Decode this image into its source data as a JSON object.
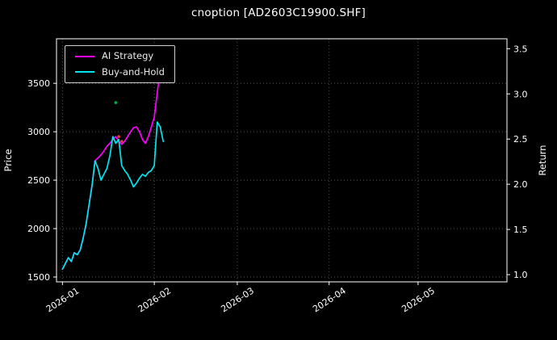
{
  "chart_data": {
    "type": "line",
    "title": "cnoption [AD2603C19900.SHF]",
    "xlabel": "",
    "ylabel_left": "Price",
    "ylabel_right": "Return",
    "background": "#000000",
    "grid": "dotted",
    "legend_position": "upper-left",
    "x_ticks": [
      "2026-01",
      "2026-02",
      "2026-03",
      "2026-04",
      "2026-05"
    ],
    "x_tick_dates": [
      "2026-01-01",
      "2026-02-01",
      "2026-03-01",
      "2026-04-01",
      "2026-05-01"
    ],
    "x_domain": [
      "2025-12-30",
      "2026-05-31"
    ],
    "y_left": {
      "ticks": [
        1500,
        2000,
        2500,
        3000,
        3500
      ],
      "domain": [
        1450,
        3960
      ]
    },
    "y_right": {
      "ticks": [
        1.0,
        1.5,
        2.0,
        2.5,
        3.0,
        3.5
      ],
      "domain": [
        0.92,
        3.61
      ]
    },
    "series": [
      {
        "name": "AI Strategy",
        "color": "#ff00ff",
        "axis": "left",
        "dates": [
          "2026-01-01",
          "2026-01-02",
          "2026-01-03",
          "2026-01-04",
          "2026-01-05",
          "2026-01-06",
          "2026-01-07",
          "2026-01-08",
          "2026-01-09",
          "2026-01-10",
          "2026-01-11",
          "2026-01-12",
          "2026-01-13",
          "2026-01-14",
          "2026-01-15",
          "2026-01-16",
          "2026-01-17",
          "2026-01-18",
          "2026-01-19",
          "2026-01-20",
          "2026-01-21",
          "2026-01-22",
          "2026-01-23",
          "2026-01-24",
          "2026-01-25",
          "2026-01-26",
          "2026-01-27",
          "2026-01-28",
          "2026-01-29",
          "2026-01-30",
          "2026-01-31",
          "2026-02-01",
          "2026-02-02",
          "2026-02-03",
          "2026-02-04"
        ],
        "values": [
          1580,
          1640,
          1700,
          1660,
          1750,
          1730,
          1780,
          1900,
          2050,
          2250,
          2450,
          2700,
          2730,
          2760,
          2800,
          2850,
          2880,
          2920,
          2950,
          2900,
          2870,
          2900,
          2950,
          3000,
          3040,
          3050,
          3000,
          2920,
          2880,
          2950,
          3050,
          3150,
          3400,
          3650,
          3800
        ]
      },
      {
        "name": "Buy-and-Hold",
        "color": "#00e5ee",
        "axis": "left",
        "dates": [
          "2026-01-01",
          "2026-01-02",
          "2026-01-03",
          "2026-01-04",
          "2026-01-05",
          "2026-01-06",
          "2026-01-07",
          "2026-01-08",
          "2026-01-09",
          "2026-01-10",
          "2026-01-11",
          "2026-01-12",
          "2026-01-13",
          "2026-01-14",
          "2026-01-15",
          "2026-01-16",
          "2026-01-17",
          "2026-01-18",
          "2026-01-19",
          "2026-01-20",
          "2026-01-21",
          "2026-01-22",
          "2026-01-23",
          "2026-01-24",
          "2026-01-25",
          "2026-01-26",
          "2026-01-27",
          "2026-01-28",
          "2026-01-29",
          "2026-01-30",
          "2026-01-31",
          "2026-02-01",
          "2026-02-02",
          "2026-02-03",
          "2026-02-04"
        ],
        "values": [
          1580,
          1640,
          1700,
          1660,
          1750,
          1730,
          1780,
          1900,
          2050,
          2250,
          2450,
          2700,
          2620,
          2500,
          2560,
          2620,
          2750,
          2950,
          2880,
          2920,
          2650,
          2600,
          2560,
          2500,
          2430,
          2470,
          2520,
          2560,
          2540,
          2580,
          2600,
          2650,
          3100,
          3050,
          2900
        ]
      }
    ],
    "markers": [
      {
        "date": "2026-01-19",
        "value": 3300,
        "color": "#00b050"
      },
      {
        "date": "2026-01-20",
        "value": 2950,
        "color": "#e03c3c"
      },
      {
        "date": "2026-01-21",
        "value": 2900,
        "color": "#e03c3c"
      }
    ]
  }
}
